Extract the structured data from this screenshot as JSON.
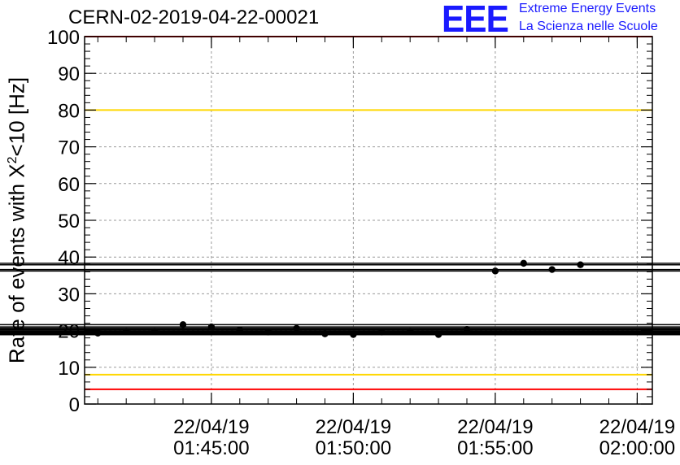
{
  "chart_data": {
    "type": "scatter",
    "title": "CERN-02-2019-04-22-00021",
    "ylabel_pre": "Rate of events with X",
    "ylabel_sup": "2",
    "ylabel_post": "<10 [Hz]",
    "xlabel": "",
    "ylim": [
      0,
      100
    ],
    "yticks": [
      0,
      10,
      20,
      30,
      40,
      50,
      60,
      70,
      80,
      90,
      100
    ],
    "xlim": [
      "01:40:32",
      "02:00:32"
    ],
    "xticks": [
      {
        "date": "22/04/19",
        "time": "01:45:00"
      },
      {
        "date": "22/04/19",
        "time": "01:50:00"
      },
      {
        "date": "22/04/19",
        "time": "01:55:00"
      },
      {
        "date": "22/04/19",
        "time": "02:00:00"
      }
    ],
    "grid": true,
    "bin_width": "00:01:00",
    "series": [
      {
        "x": [
          "01:41:00",
          "01:42:00",
          "01:43:00",
          "01:44:00",
          "01:45:00",
          "01:46:00",
          "01:47:00",
          "01:48:00",
          "01:49:00",
          "01:50:00",
          "01:51:00",
          "01:52:00",
          "01:53:00",
          "01:54:00",
          "01:55:00",
          "01:56:00",
          "01:57:00",
          "01:58:00",
          "01:59:00",
          "02:00:00"
        ],
        "values": [
          19.3,
          19.8,
          19.8,
          21.6,
          21.0,
          20.2,
          19.6,
          20.6,
          19.1,
          18.9,
          19.6,
          19.8,
          18.9,
          20.3,
          36.2,
          38.3,
          36.6,
          37.9,
          null,
          null
        ]
      }
    ],
    "reference_lines": [
      {
        "y": 80,
        "color": "#ffd700"
      },
      {
        "y": 8,
        "color": "#ffd700"
      },
      {
        "y": 100,
        "color": "#ff0000"
      },
      {
        "y": 4,
        "color": "#ff0000"
      }
    ]
  },
  "logo": {
    "mark": "EEE",
    "line1": "Extreme Energy Events",
    "line2": "La Scienza nelle Scuole",
    "color": "#1a1aff"
  }
}
